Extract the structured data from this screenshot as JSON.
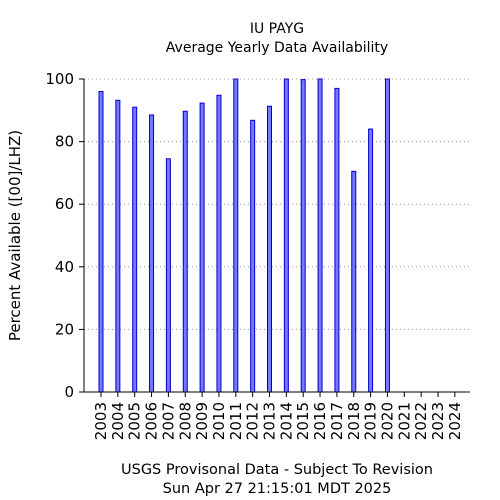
{
  "chart_data": {
    "type": "bar",
    "title": "IU PAYG",
    "subtitle": "Average Yearly Data Availability",
    "ylabel": "Percent Available ([00]/LHZ)",
    "xlabel": "",
    "ylim": [
      0,
      100
    ],
    "yticks": [
      0,
      20,
      40,
      60,
      80,
      100
    ],
    "grid": "horizontal dotted",
    "bar_color": "#7777ff",
    "bar_edge_color": "#0000cc",
    "categories": [
      "2003",
      "2004",
      "2005",
      "2006",
      "2007",
      "2008",
      "2009",
      "2010",
      "2011",
      "2012",
      "2013",
      "2014",
      "2015",
      "2016",
      "2017",
      "2018",
      "2019",
      "2020",
      "2021",
      "2022",
      "2023",
      "2024"
    ],
    "values": [
      96,
      93.2,
      91,
      88.5,
      74.5,
      89.7,
      92.3,
      94.8,
      100,
      86.8,
      91.3,
      100,
      99.8,
      100,
      97,
      70.5,
      84,
      100,
      0,
      0,
      0,
      0
    ]
  },
  "footer": {
    "line1": "USGS Provisonal Data - Subject To Revision",
    "line2": "Sun Apr 27 21:15:01 MDT 2025"
  }
}
